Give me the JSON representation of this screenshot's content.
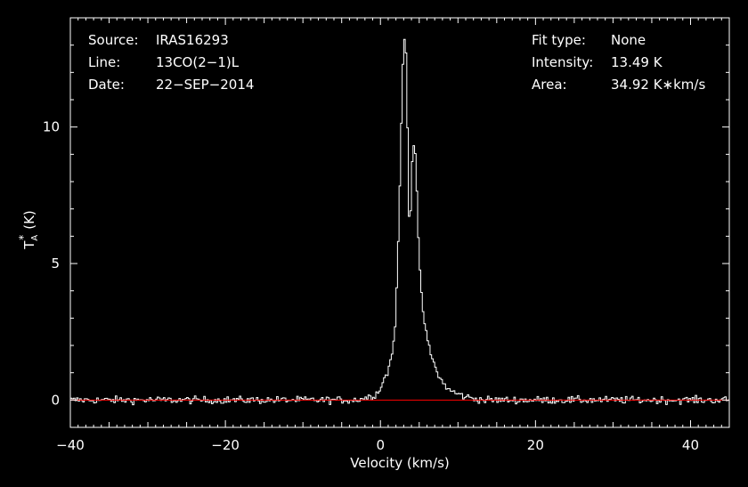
{
  "chart_data": {
    "type": "line",
    "xlabel": "Velocity (km/s)",
    "ylabel": "T",
    "ylabel_sub": "A",
    "ylabel_sup": "*",
    "ylabel_unit": "(K)",
    "xlim": [
      -40,
      45
    ],
    "ylim": [
      -1,
      14
    ],
    "x_ticks": [
      -40,
      -20,
      0,
      20,
      40
    ],
    "x_tick_labels": [
      "−40",
      "−20",
      "0",
      "20",
      "40"
    ],
    "y_ticks": [
      0,
      5,
      10
    ],
    "y_tick_labels": [
      "0",
      "5",
      "10"
    ],
    "grid": false,
    "colors": {
      "background": "#000000",
      "spectrum": "#ffffff",
      "baseline": "#ff0000",
      "axes": "#ffffff"
    },
    "info_left": [
      {
        "label": "Source:",
        "value": "IRAS16293"
      },
      {
        "label": "Line:",
        "value": "13CO(2−1)L"
      },
      {
        "label": "Date:",
        "value": "22−SEP−2014"
      }
    ],
    "info_right": [
      {
        "label": "Fit type:",
        "value": "None"
      },
      {
        "label": "Intensity:",
        "value": "13.49 K"
      },
      {
        "label": "Area:",
        "value": "34.92 K∗km/s"
      }
    ],
    "baseline": {
      "value": 0
    },
    "noise_rms": 0.13,
    "series": [
      {
        "step": 0.2,
        "x": [
          -3.0,
          -2.0,
          -1.0,
          -0.2,
          0.0,
          0.3,
          0.6,
          0.9,
          1.2,
          1.5,
          1.8,
          2.0,
          2.2,
          2.4,
          2.6,
          2.8,
          3.0,
          3.2,
          3.4,
          3.6,
          3.8,
          4.0,
          4.2,
          4.4,
          4.6,
          4.8,
          5.0,
          5.2,
          5.4,
          5.6,
          5.8,
          6.0,
          6.3,
          6.6,
          7.0,
          7.5,
          8.0,
          8.5,
          9.0,
          9.5,
          10.0,
          11.0,
          12.0,
          13.0
        ],
        "y": [
          0.02,
          0.08,
          0.15,
          0.3,
          0.5,
          0.65,
          0.85,
          1.0,
          1.3,
          1.7,
          2.4,
          3.2,
          4.8,
          6.8,
          8.8,
          11.5,
          13.0,
          13.49,
          12.0,
          7.8,
          6.0,
          8.0,
          9.4,
          9.45,
          8.6,
          6.8,
          5.0,
          4.2,
          3.6,
          3.0,
          2.6,
          2.3,
          1.9,
          1.6,
          1.25,
          0.9,
          0.65,
          0.48,
          0.35,
          0.28,
          0.22,
          0.12,
          0.06,
          0.02
        ]
      }
    ]
  }
}
